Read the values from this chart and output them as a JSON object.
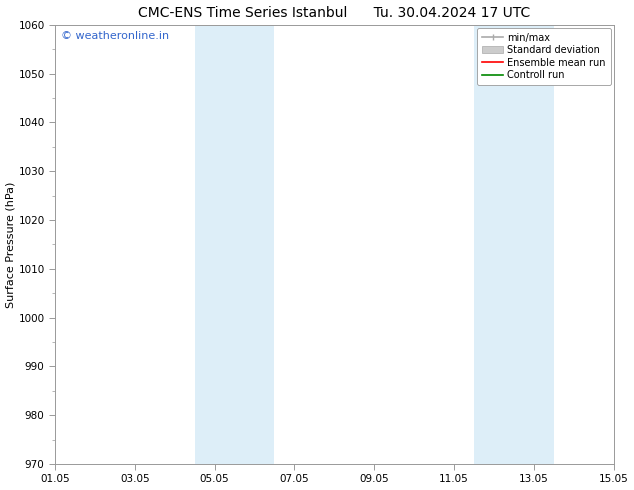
{
  "title_left": "CMC-ENS Time Series Istanbul",
  "title_right": "Tu. 30.04.2024 17 UTC",
  "ylabel": "Surface Pressure (hPa)",
  "ylim": [
    970,
    1060
  ],
  "yticks": [
    970,
    980,
    990,
    1000,
    1010,
    1020,
    1030,
    1040,
    1050,
    1060
  ],
  "xlim": [
    0,
    14
  ],
  "xtick_labels": [
    "01.05",
    "03.05",
    "05.05",
    "07.05",
    "09.05",
    "11.05",
    "13.05",
    "15.05"
  ],
  "xtick_positions": [
    0,
    2,
    4,
    6,
    8,
    10,
    12,
    14
  ],
  "shaded_bands": [
    {
      "x_start": 3.5,
      "x_end": 5.5
    },
    {
      "x_start": 10.5,
      "x_end": 12.5
    }
  ],
  "shaded_color": "#ddeef8",
  "watermark_text": "© weatheronline.in",
  "watermark_color": "#3366cc",
  "legend_labels": [
    "min/max",
    "Standard deviation",
    "Ensemble mean run",
    "Controll run"
  ],
  "legend_line_colors": [
    "#aaaaaa",
    "#bbbbbb",
    "#ff0000",
    "#008800"
  ],
  "bg_color": "#ffffff",
  "spine_color": "#999999",
  "title_fontsize": 10,
  "ylabel_fontsize": 8,
  "tick_fontsize": 7.5,
  "watermark_fontsize": 8,
  "legend_fontsize": 7
}
